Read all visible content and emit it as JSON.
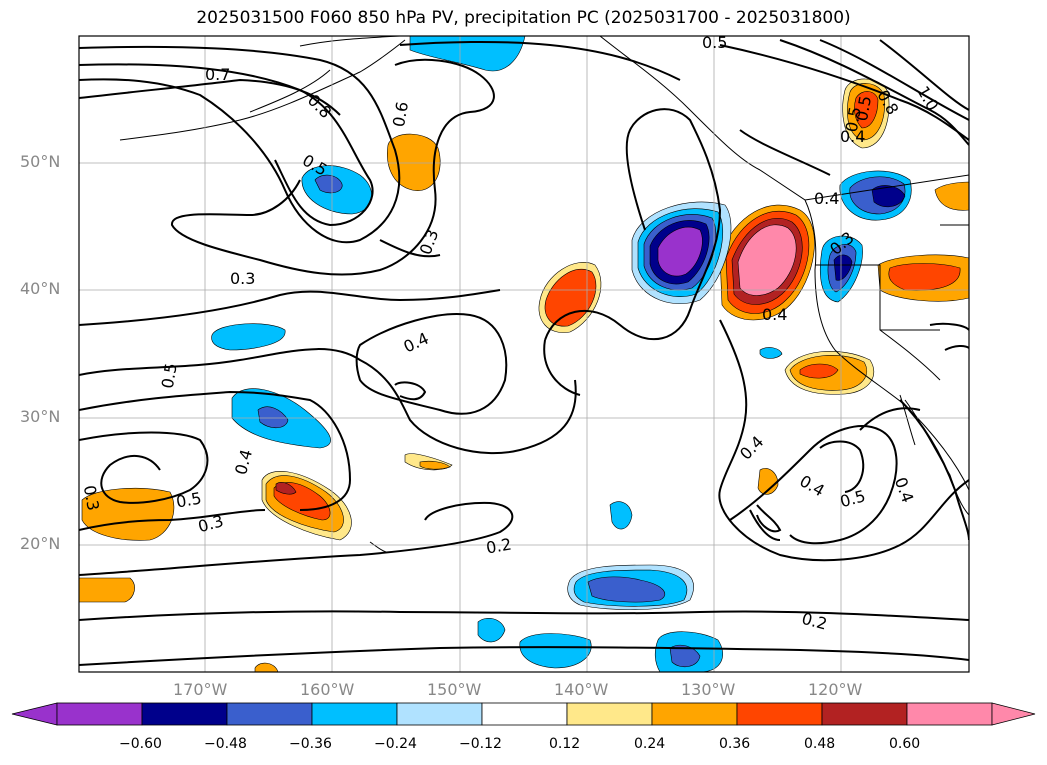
{
  "title": "2025031500 F060 850 hPa PV, precipitation PC (2025031700 - 2025031800)",
  "lat_labels": [
    "50°N",
    "40°N",
    "30°N",
    "20°N"
  ],
  "lon_labels": [
    "170°W",
    "160°W",
    "150°W",
    "140°W",
    "130°W",
    "120°W"
  ],
  "colorbar": {
    "tick_labels": [
      "−0.60",
      "−0.48",
      "−0.36",
      "−0.24",
      "−0.12",
      "0.12",
      "0.24",
      "0.36",
      "0.48",
      "0.60"
    ],
    "colors": [
      "#9932cc",
      "#00008b",
      "#3a5fcd",
      "#00bfff",
      "#b0e2ff",
      "#ffffff",
      "#ffe88a",
      "#ffa500",
      "#ff4500",
      "#b22222",
      "#ff88aa"
    ]
  },
  "contour_labels": [
    "0.5",
    "0.7",
    "0.8",
    "0.6",
    "0.5",
    "0.3",
    "0.3",
    "0.4",
    "0.5",
    "0.4",
    "0.3",
    "0.5",
    "0.3",
    "0.2",
    "0.4",
    "0.4",
    "0.5",
    "0.4",
    "0.2",
    "0.4",
    "0.8",
    "1.0",
    "0.5",
    "0.4",
    "0.3",
    "0.4",
    "0.5"
  ]
}
